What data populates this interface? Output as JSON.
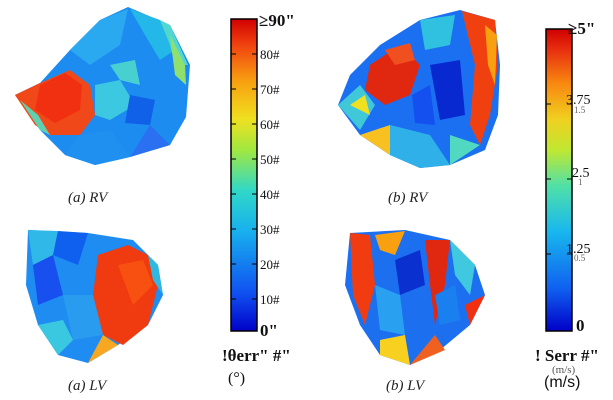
{
  "panels": [
    {
      "id": "a-rv",
      "caption": "(a) RV"
    },
    {
      "id": "b-rv",
      "caption": "(b) RV"
    },
    {
      "id": "a-lv",
      "caption": "(a) LV"
    },
    {
      "id": "b-lv",
      "caption": "(b) LV"
    }
  ],
  "colorbar_left": {
    "title": "!θerr\" #\"",
    "unit": "(°)",
    "max_label": "≥90\"",
    "ticks": [
      "80#",
      "70#",
      "60#",
      "50#",
      "40#",
      "30#",
      "20#",
      "10#",
      "0\""
    ],
    "range": [
      0,
      90
    ]
  },
  "colorbar_right": {
    "title": "! Serr #\"",
    "unit": "(m/s)",
    "sub_unit": "(m/s)",
    "max_label": "≥5\"",
    "ticks": [
      "3.75",
      "2.5",
      "1.25",
      "0"
    ],
    "faint_ticks": [
      "1.5",
      "1",
      "0.5"
    ],
    "range": [
      0,
      5
    ]
  },
  "colormap": [
    "#0000c8",
    "#1060f0",
    "#18b8e8",
    "#38d8c0",
    "#a8e838",
    "#f0e020",
    "#f8a010",
    "#f04010",
    "#d80000"
  ]
}
